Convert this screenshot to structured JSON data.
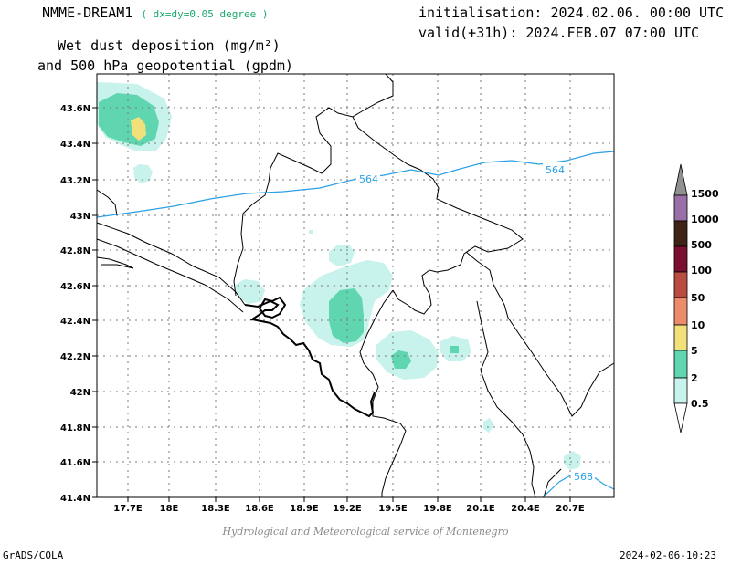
{
  "header": {
    "model": "NMME-DREAM1",
    "resolution": "( dx=dy=0.05 degree )",
    "init": "initialisation: 2024.02.06. 00:00 UTC",
    "valid": "valid(+31h): 2024.FEB.07 07:00 UTC",
    "title_line1": "Wet dust deposition (mg/m²)",
    "title_line2": "and 500 hPa geopotential (gpdm)"
  },
  "axes": {
    "x_labels": [
      "17.7E",
      "18E",
      "18.3E",
      "18.6E",
      "18.9E",
      "19.2E",
      "19.5E",
      "19.8E",
      "20.1E",
      "20.4E",
      "20.7E"
    ],
    "y_labels": [
      "43.6N",
      "43.4N",
      "43.2N",
      "43N",
      "42.8N",
      "42.6N",
      "42.4N",
      "42.2N",
      "42N",
      "41.8N",
      "41.6N",
      "41.4N"
    ]
  },
  "contours": {
    "label_564_a": "564",
    "label_564_b": "564",
    "label_568": "568"
  },
  "colorbar": {
    "levels": [
      "1500",
      "1000",
      "500",
      "100",
      "50",
      "10",
      "5",
      "2",
      "0.5"
    ],
    "colors": {
      "c1000": "#9a6fa8",
      "c500": "#3d2416",
      "c100": "#7a0f2f",
      "c50": "#b84c40",
      "c10": "#ec8c6c",
      "c5": "#f2e07a",
      "c2": "#5fd6b0",
      "c05": "#c8f2ec",
      "over": "#909090"
    }
  },
  "footer": {
    "credit": "Hydrological and Meteorological service of Montenegro",
    "software": "GrADS/COLA",
    "timestamp": "2024-02-06-10:23"
  }
}
